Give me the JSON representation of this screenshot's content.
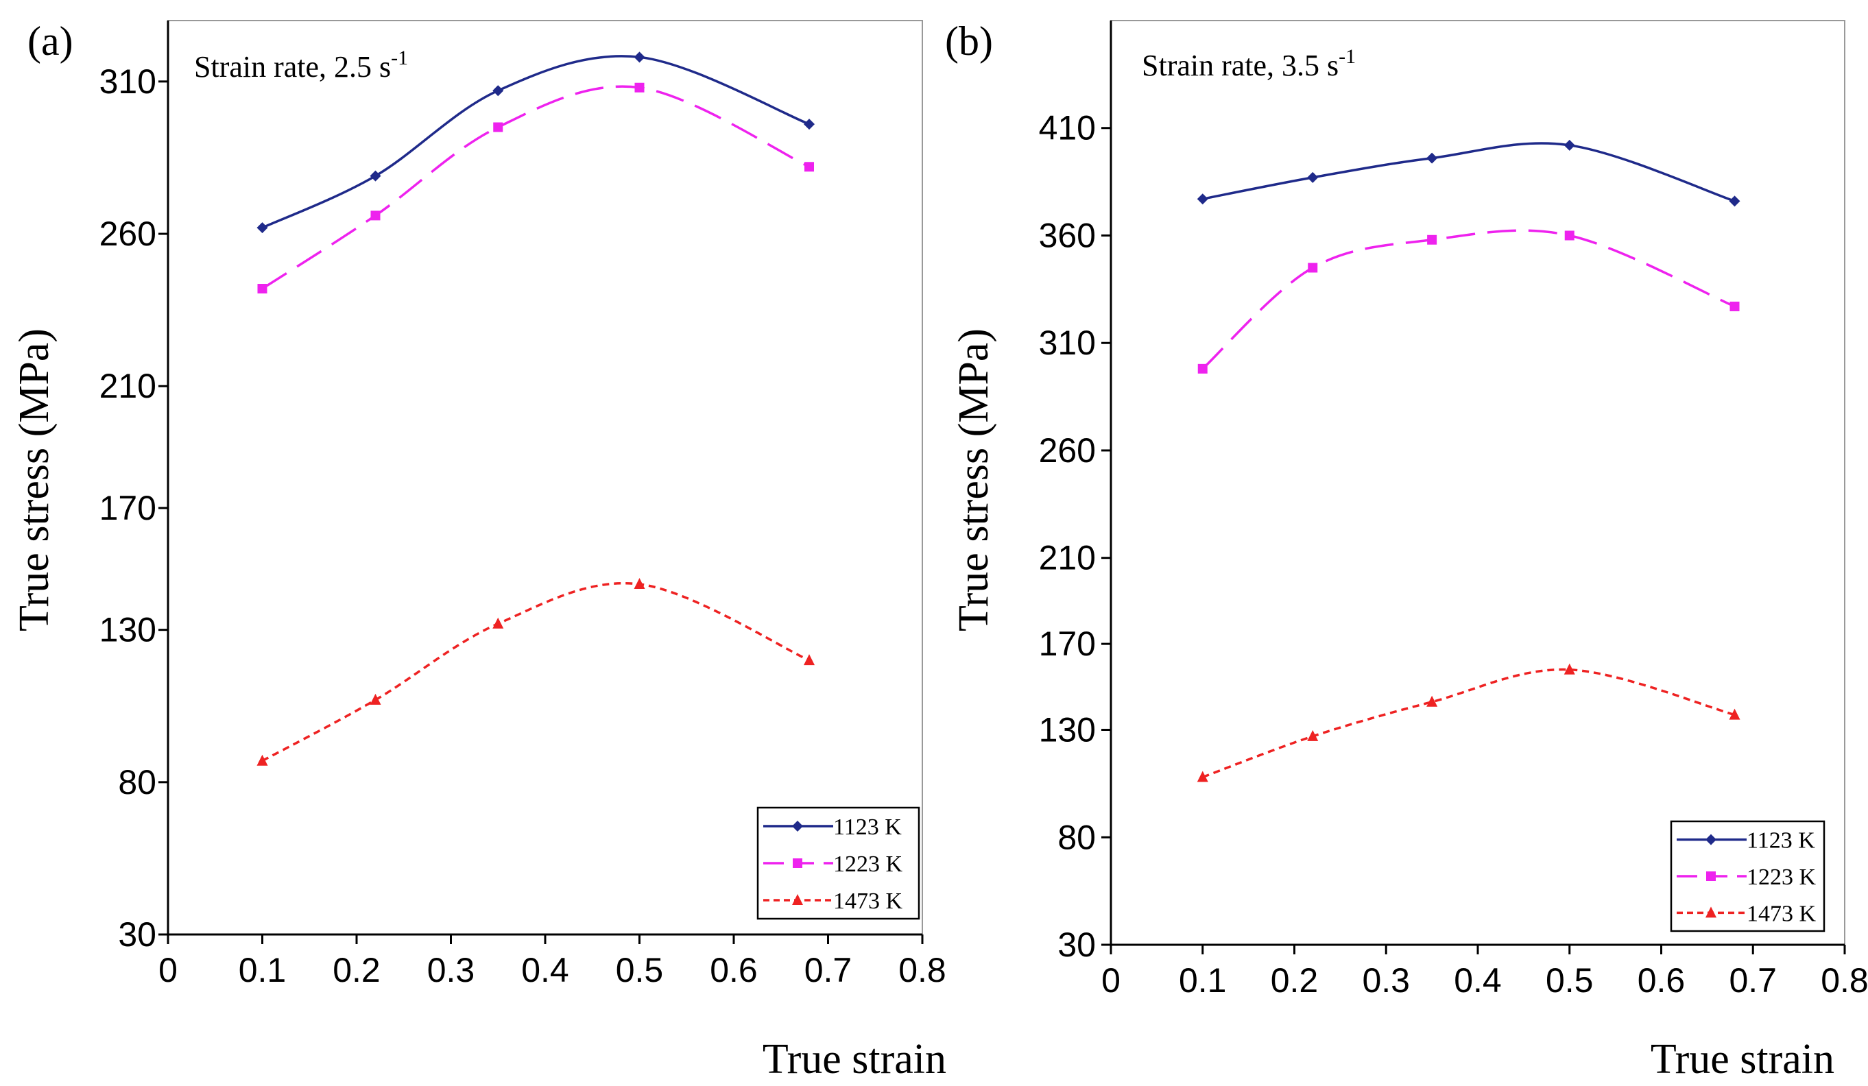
{
  "chart_data": [
    {
      "type": "line",
      "panel_label": "(a)",
      "annotation": "Strain rate, 2.5 s",
      "annotation_superscript": "-1",
      "xlabel": "True strain",
      "ylabel": "True stress (MPa)",
      "xlim": [
        0,
        0.8
      ],
      "ylim": [
        30,
        330
      ],
      "x_ticks": [
        0,
        0.1,
        0.2,
        0.3,
        0.4,
        0.5,
        0.6,
        0.7,
        0.8
      ],
      "x_tick_labels": [
        "0",
        "0.1",
        "0.2",
        "0.3",
        "0.4",
        "0.5",
        "0.6",
        "0.7",
        "0.8"
      ],
      "y_ticks": [
        30,
        80,
        130,
        170,
        210,
        260,
        310
      ],
      "y_tick_labels": [
        "30",
        "80",
        "130",
        "170",
        "210",
        "260",
        "310"
      ],
      "grid": false,
      "legend_position": "bottom-right",
      "x": [
        0.1,
        0.22,
        0.35,
        0.5,
        0.68
      ],
      "series": [
        {
          "name": "1123 K",
          "color": "#1f2a8a",
          "marker": "diamond",
          "dash": "solid",
          "values": [
            262,
            279,
            307,
            318,
            296
          ]
        },
        {
          "name": "1223 K",
          "color": "#ee22ee",
          "marker": "square",
          "dash": "long-dash",
          "values": [
            242,
            266,
            295,
            308,
            282
          ]
        },
        {
          "name": "1473 K",
          "color": "#ee2222",
          "marker": "triangle",
          "dash": "short-dash",
          "values": [
            87,
            107,
            132,
            145,
            120
          ]
        }
      ]
    },
    {
      "type": "line",
      "panel_label": "(b)",
      "annotation": "Strain rate, 3.5 s",
      "annotation_superscript": "-1",
      "xlabel": "True strain",
      "ylabel": "True stress (MPa)",
      "xlim": [
        0,
        0.8
      ],
      "ylim": [
        30,
        460
      ],
      "x_ticks": [
        0,
        0.1,
        0.2,
        0.3,
        0.4,
        0.5,
        0.6,
        0.7,
        0.8
      ],
      "x_tick_labels": [
        "0",
        "0.1",
        "0.2",
        "0.3",
        "0.4",
        "0.5",
        "0.6",
        "0.7",
        "0.8"
      ],
      "y_ticks": [
        30,
        80,
        130,
        170,
        210,
        260,
        310,
        360,
        410
      ],
      "y_tick_labels": [
        "30",
        "80",
        "130",
        "170",
        "210",
        "260",
        "310",
        "360",
        "410"
      ],
      "grid": false,
      "legend_position": "bottom-right",
      "x": [
        0.1,
        0.22,
        0.35,
        0.5,
        0.68
      ],
      "series": [
        {
          "name": "1123 K",
          "color": "#1f2a8a",
          "marker": "diamond",
          "dash": "solid",
          "values": [
            377,
            387,
            396,
            402,
            376
          ]
        },
        {
          "name": "1223 K",
          "color": "#ee22ee",
          "marker": "square",
          "dash": "long-dash",
          "values": [
            298,
            345,
            358,
            360,
            327
          ]
        },
        {
          "name": "1473 K",
          "color": "#ee2222",
          "marker": "triangle",
          "dash": "short-dash",
          "values": [
            108,
            127,
            143,
            158,
            137
          ]
        }
      ]
    }
  ]
}
